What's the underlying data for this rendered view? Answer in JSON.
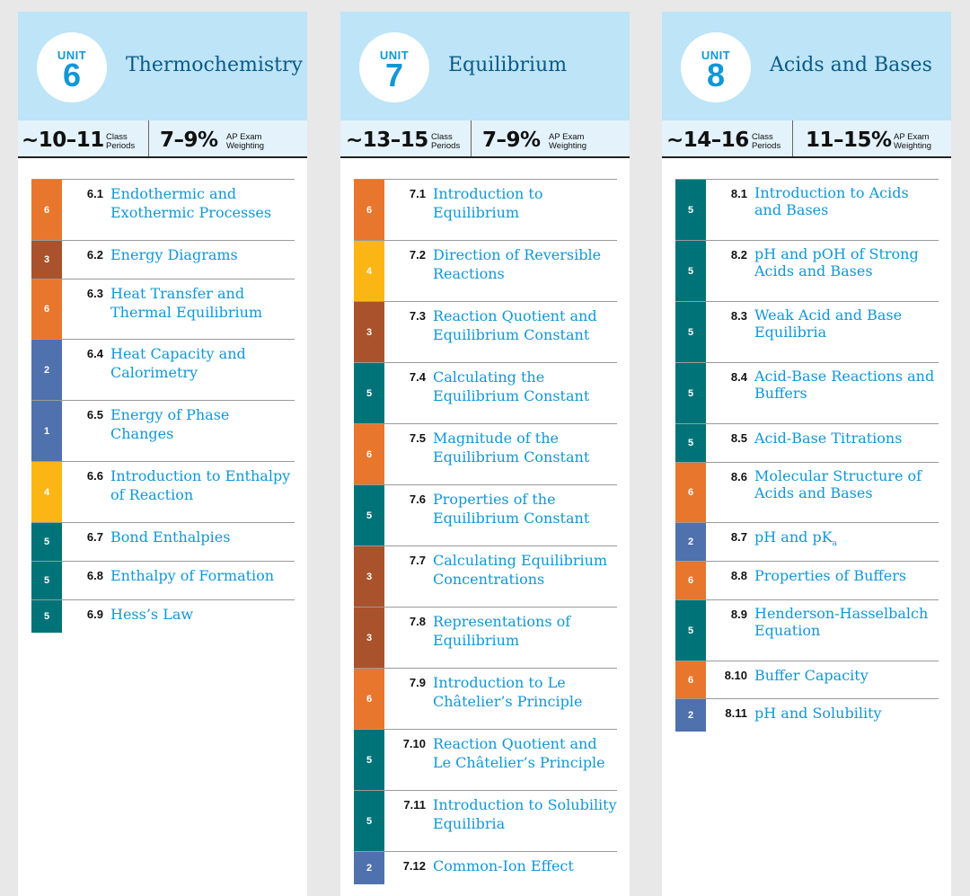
{
  "units": [
    {
      "label": "UNIT",
      "number": "6",
      "title": "Thermochemistry",
      "class_periods": "~10–11",
      "class_periods_label": [
        "Class",
        "Periods"
      ],
      "weighting": "7–9%",
      "weighting_label": [
        "AP Exam",
        "Weighting"
      ],
      "topics": [
        {
          "num": "6.1",
          "name": "Endothermic and Exothermic Processes",
          "periods": "6"
        },
        {
          "num": "6.2",
          "name": "Energy Diagrams",
          "periods": "3"
        },
        {
          "num": "6.3",
          "name": "Heat Transfer and Thermal Equilibrium",
          "periods": "6"
        },
        {
          "num": "6.4",
          "name": "Heat Capacity and Calorimetry",
          "periods": "2"
        },
        {
          "num": "6.5",
          "name": "Energy of Phase Changes",
          "periods": "1"
        },
        {
          "num": "6.6",
          "name": "Introduction to Enthalpy of Reaction",
          "periods": "4"
        },
        {
          "num": "6.7",
          "name": "Bond Enthalpies",
          "periods": "5"
        },
        {
          "num": "6.8",
          "name": "Enthalpy of Formation",
          "periods": "5"
        },
        {
          "num": "6.9",
          "name": "Hess’s Law",
          "periods": "5"
        }
      ]
    },
    {
      "label": "UNIT",
      "number": "7",
      "title": "Equilibrium",
      "class_periods": "~13–15",
      "class_periods_label": [
        "Class",
        "Periods"
      ],
      "weighting": "7–9%",
      "weighting_label": [
        "AP Exam",
        "Weighting"
      ],
      "topics": [
        {
          "num": "7.1",
          "name": "Introduction to Equilibrium",
          "periods": "6"
        },
        {
          "num": "7.2",
          "name": "Direction of Reversible Reactions",
          "periods": "4"
        },
        {
          "num": "7.3",
          "name": "Reaction Quotient and Equilibrium Constant",
          "periods": "3"
        },
        {
          "num": "7.4",
          "name": "Calculating the Equilibrium Constant",
          "periods": "5"
        },
        {
          "num": "7.5",
          "name": "Magnitude of the Equilibrium Constant",
          "periods": "6"
        },
        {
          "num": "7.6",
          "name": "Properties of the Equilibrium Constant",
          "periods": "5"
        },
        {
          "num": "7.7",
          "name": "Calculating Equilibrium Concentrations",
          "periods": "3"
        },
        {
          "num": "7.8",
          "name": "Representations of Equilibrium",
          "periods": "3"
        },
        {
          "num": "7.9",
          "name": "Introduction to Le Châtelier’s Principle",
          "periods": "6"
        },
        {
          "num": "7.10",
          "name": "Reaction Quotient and Le Châtelier’s Principle",
          "periods": "5"
        },
        {
          "num": "7.11",
          "name": "Introduction to Solubility Equilibria",
          "periods": "5"
        },
        {
          "num": "7.12",
          "name": "Common-Ion Effect",
          "periods": "2"
        }
      ]
    },
    {
      "label": "UNIT",
      "number": "8",
      "title": "Acids and Bases",
      "class_periods": "~14–16",
      "class_periods_label": [
        "Class",
        "Periods"
      ],
      "weighting": "11–15%",
      "weighting_label": [
        "AP Exam",
        "Weighting"
      ],
      "topics": [
        {
          "num": "8.1",
          "name": "Introduction to Acids and Bases",
          "periods": "5"
        },
        {
          "num": "8.2",
          "name": "pH and pOH of Strong Acids and Bases",
          "periods": "5"
        },
        {
          "num": "8.3",
          "name": "Weak Acid and Base Equilibria",
          "periods": "5"
        },
        {
          "num": "8.4",
          "name": "Acid-Base Reactions and Buffers",
          "periods": "5"
        },
        {
          "num": "8.5",
          "name": "Acid-Base Titrations",
          "periods": "5"
        },
        {
          "num": "8.6",
          "name": "Molecular Structure of Acids and Bases",
          "periods": "6"
        },
        {
          "num": "8.7",
          "name": "pH and pK",
          "name_sub": "a",
          "periods": "2"
        },
        {
          "num": "8.8",
          "name": "Properties of Buffers",
          "periods": "6"
        },
        {
          "num": "8.9",
          "name": "Henderson-Hasselbalch Equation",
          "periods": "5"
        },
        {
          "num": "8.10",
          "name": "Buffer Capacity",
          "periods": "6"
        },
        {
          "num": "8.11",
          "name": "pH and Solubility",
          "periods": "2"
        }
      ]
    }
  ],
  "colors": {
    "1": "#4f71ad",
    "2": "#4f71ad",
    "3": "#a9522b",
    "4": "#fbb616",
    "5": "#007378",
    "6": "#e8762c"
  }
}
